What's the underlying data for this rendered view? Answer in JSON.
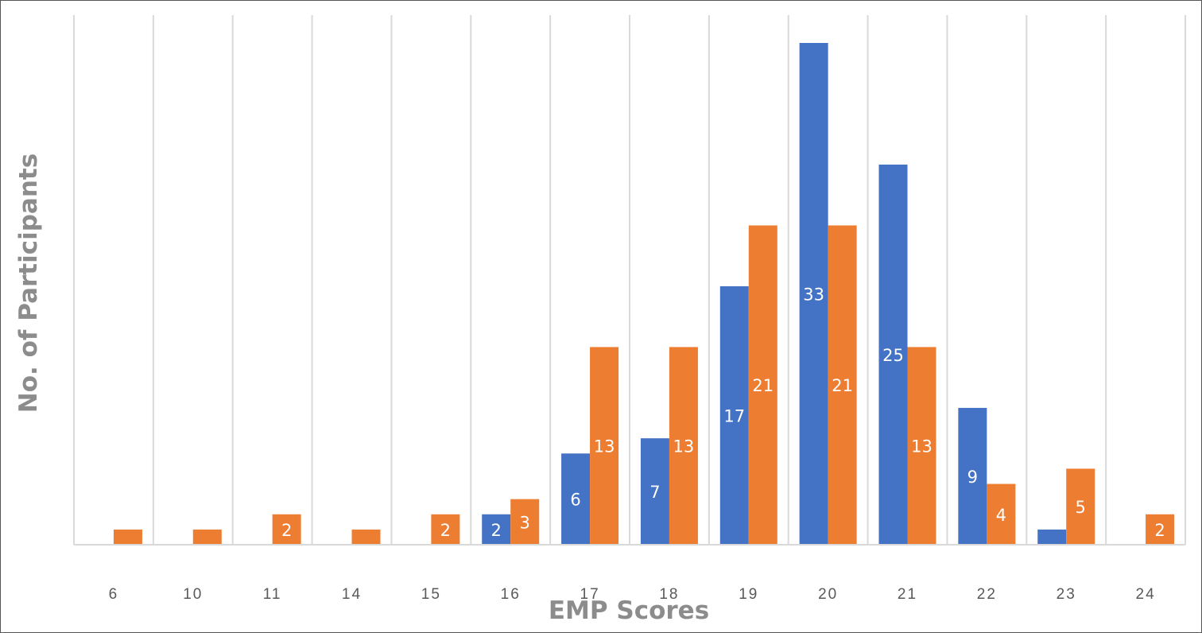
{
  "chart_data": {
    "type": "bar",
    "categories": [
      "6",
      "10",
      "11",
      "14",
      "15",
      "16",
      "17",
      "18",
      "19",
      "20",
      "21",
      "22",
      "23",
      "24"
    ],
    "series": [
      {
        "values": [
          0,
          0,
          0,
          0,
          0,
          2,
          6,
          7,
          17,
          33,
          25,
          9,
          1,
          0
        ],
        "color": "#4472c4"
      },
      {
        "values": [
          1,
          1,
          2,
          1,
          2,
          3,
          13,
          13,
          21,
          21,
          13,
          4,
          5,
          2
        ],
        "color": "#ed7d31"
      }
    ],
    "data_labels": [
      [
        "",
        "",
        "",
        "",
        "",
        "2",
        "6",
        "7",
        "17",
        "33",
        "25",
        "9",
        "",
        ""
      ],
      [
        "",
        "",
        "2",
        "",
        "2",
        "3",
        "13",
        "13",
        "21",
        "21",
        "13",
        "4",
        "5",
        "2"
      ]
    ],
    "xlabel": "EMP Scores",
    "ylabel": "No. of Participants",
    "ylim": [
      0,
      33
    ],
    "grid": "vertical",
    "legend": "none",
    "gridline_color": "#d9d9d9",
    "axis_color": "#d9d9d9"
  }
}
